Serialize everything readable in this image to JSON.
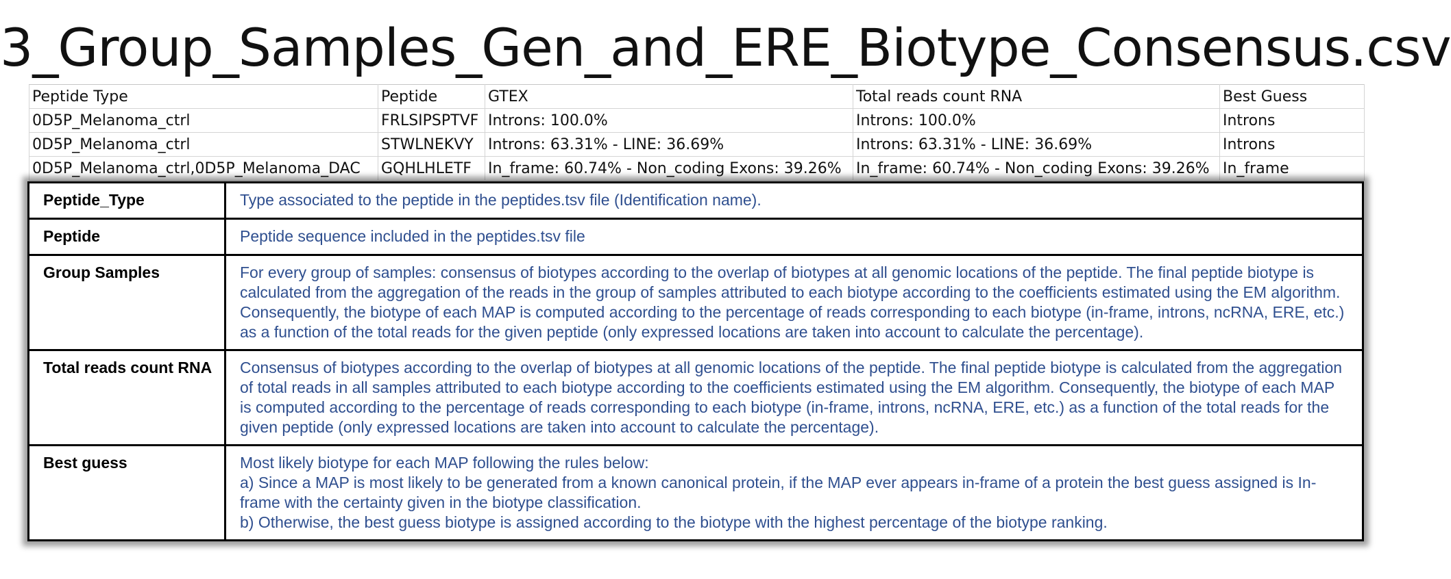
{
  "title": "3_Group_Samples_Gen_and_ERE_Biotype_Consensus.csv",
  "sheet": {
    "columns": [
      "Peptide Type",
      "Peptide",
      "GTEX",
      "Total reads count RNA",
      "Best Guess"
    ],
    "rows": [
      [
        "0D5P_Melanoma_ctrl",
        "FRLSIPSPTVF",
        "Introns: 100.0%",
        "Introns: 100.0%",
        "Introns"
      ],
      [
        "0D5P_Melanoma_ctrl",
        "STWLNEKVY",
        "Introns: 63.31% - LINE: 36.69%",
        "Introns: 63.31% - LINE: 36.69%",
        "Introns"
      ],
      [
        "0D5P_Melanoma_ctrl,0D5P_Melanoma_DAC",
        "GQHLHLETF",
        "In_frame: 60.74% - Non_coding Exons: 39.26%",
        "In_frame: 60.74% - Non_coding Exons: 39.26%",
        "In_frame"
      ]
    ]
  },
  "descriptions": [
    {
      "term": "Peptide_Type",
      "text": "Type associated to the peptide in the peptides.tsv file (Identification name)."
    },
    {
      "term": "Peptide",
      "text": "Peptide sequence included in the peptides.tsv file"
    },
    {
      "term": "Group Samples",
      "text": "For every group of samples: consensus of biotypes according to the overlap of biotypes at all genomic locations of the peptide. The final peptide biotype is calculated from the aggregation of the reads in the group of samples attributed to each biotype according to the coefficients estimated using the EM algorithm. Consequently, the biotype of each MAP is computed according to the percentage of reads corresponding to each biotype (in-frame, introns, ncRNA, ERE, etc.) as a function of the total reads for the given peptide (only expressed locations are taken into account to calculate the percentage)."
    },
    {
      "term": "Total reads count RNA",
      "text": "Consensus of biotypes according to the overlap of biotypes at all genomic locations of the peptide. The final peptide biotype is calculated from the aggregation of total reads in all samples attributed to each biotype according to the coefficients estimated using the EM algorithm. Consequently, the biotype of each MAP is computed according to the percentage of reads corresponding to each biotype (in-frame, introns, ncRNA, ERE, etc.) as a function of the total reads for the given peptide (only expressed locations are taken into account to calculate the percentage)."
    },
    {
      "term": "Best guess",
      "lines": [
        "Most likely biotype for each MAP following the rules below:",
        "a) Since a MAP is most likely to be generated from a known canonical protein, if the MAP ever appears in-frame of a protein the best guess assigned is In-frame with the certainty given in the biotype classification.",
        "b) Otherwise, the best guess biotype is assigned according to the biotype with the highest percentage of the biotype ranking."
      ]
    }
  ]
}
